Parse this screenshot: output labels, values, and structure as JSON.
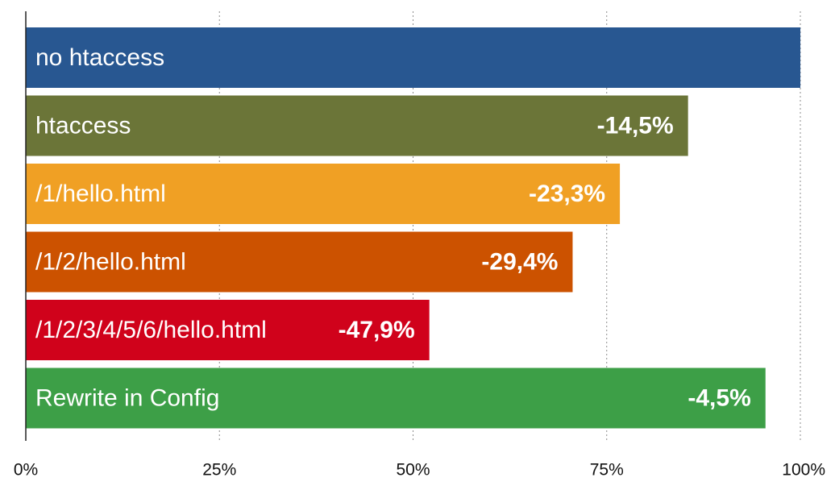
{
  "chart_data": {
    "type": "bar",
    "orientation": "horizontal",
    "categories": [
      "no htaccess",
      "htaccess",
      "/1/hello.html",
      "/1/2/hello.html",
      "/1/2/3/4/5/6/hello.html",
      "Rewrite in Config"
    ],
    "values": [
      100,
      85.5,
      76.7,
      70.6,
      52.1,
      95.5
    ],
    "value_labels": [
      "",
      "-14,5%",
      "-23,3%",
      "-29,4%",
      "-47,9%",
      "-4,5%"
    ],
    "colors": [
      "#285791",
      "#6b7538",
      "#f0a024",
      "#cc5200",
      "#d0021b",
      "#3d9f47"
    ],
    "xlim": [
      0,
      100
    ],
    "x_ticks": [
      0,
      25,
      50,
      75,
      100
    ],
    "x_tick_labels": [
      "0%",
      "25%",
      "50%",
      "75%",
      "100%"
    ],
    "grid": true,
    "title": "",
    "xlabel": "",
    "ylabel": ""
  }
}
